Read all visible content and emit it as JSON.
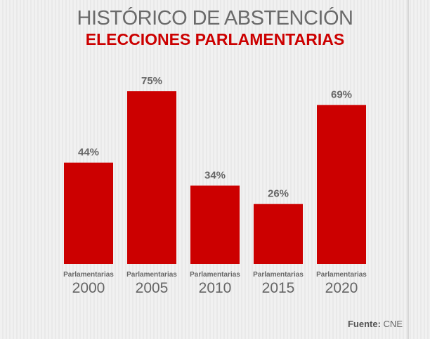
{
  "title": "HISTÓRICO DE ABSTENCIÓN",
  "subtitle": "ELECCIONES PARLAMENTARIAS",
  "source_label": "Fuente:",
  "source_value": "CNE",
  "colors": {
    "bar": "#cc0000",
    "title": "#6a6a6a",
    "subtitle": "#cc0000",
    "labels": "#666666"
  },
  "chart_data": {
    "type": "bar",
    "title": "HISTÓRICO DE ABSTENCIÓN",
    "subtitle": "ELECCIONES PARLAMENTARIAS",
    "categories": [
      "2000",
      "2005",
      "2010",
      "2015",
      "2020"
    ],
    "category_prefix": "Parlamentarias",
    "values": [
      44,
      75,
      34,
      26,
      69
    ],
    "data_labels": [
      "44%",
      "75%",
      "34%",
      "26%",
      "69%"
    ],
    "ylim": [
      0,
      75
    ],
    "grid": false,
    "legend": "none"
  }
}
